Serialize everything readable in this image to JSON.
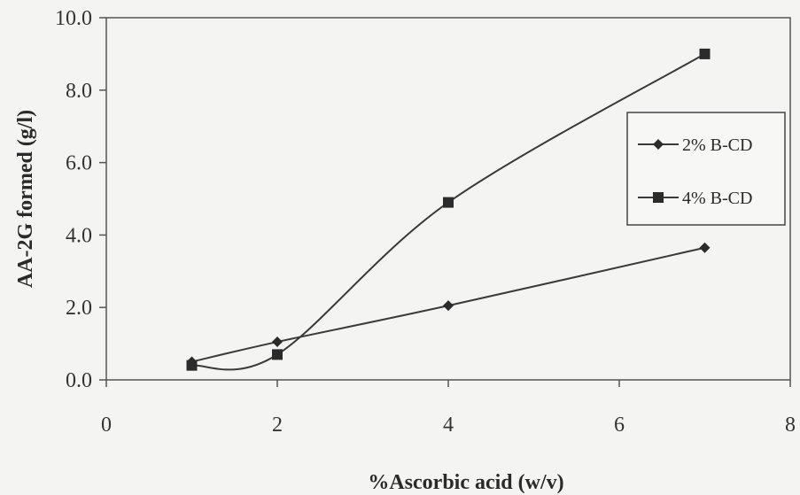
{
  "chart_data": {
    "type": "line",
    "title": "",
    "xlabel": "%Ascorbic acid (w/v)",
    "ylabel": "AA-2G formed (g/l)",
    "xlim": [
      0,
      8
    ],
    "ylim": [
      0,
      10
    ],
    "x_ticks": [
      "0",
      "2",
      "4",
      "6",
      "8"
    ],
    "y_ticks": [
      "0.0",
      "2.0",
      "4.0",
      "6.0",
      "8.0",
      "10.0"
    ],
    "grid": false,
    "legend_position": "right",
    "series": [
      {
        "name": "2% B-CD",
        "marker": "diamond",
        "x": [
          1,
          2,
          4,
          7
        ],
        "y": [
          0.5,
          1.05,
          2.05,
          3.65
        ]
      },
      {
        "name": "4% B-CD",
        "marker": "square",
        "x": [
          1,
          2,
          4,
          7
        ],
        "y": [
          0.4,
          0.7,
          4.9,
          9.0
        ]
      }
    ],
    "colors": {
      "line": "#3a3a3a",
      "marker": "#2b2b2b"
    }
  }
}
